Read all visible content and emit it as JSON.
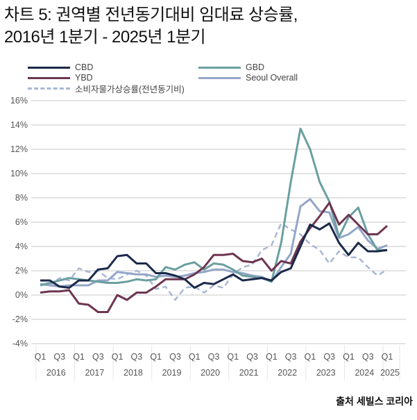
{
  "title": {
    "line1": "차트 5: 권역별 전년동기대비 임대료 상승률,",
    "line2": "2016년 1분기 - 2025년 1분기"
  },
  "source": "출처 세빌스 코리아",
  "chart_data": {
    "type": "line",
    "title": "차트 5: 권역별 전년동기대비 임대료 상승률, 2016년 1분기 - 2025년 1분기",
    "xlabel": "",
    "ylabel": "",
    "ylim": [
      -4,
      16
    ],
    "yticks": [
      "16%",
      "14%",
      "12%",
      "10%",
      "8%",
      "6%",
      "4%",
      "2%",
      "0%",
      "-2%",
      "-4%"
    ],
    "ytick_values": [
      16,
      14,
      12,
      10,
      8,
      6,
      4,
      2,
      0,
      -2,
      -4
    ],
    "grid": true,
    "legend_position": "top",
    "quarter_labels": [
      "Q1",
      "Q3",
      "Q1",
      "Q3",
      "Q1",
      "Q3",
      "Q1",
      "Q3",
      "Q1",
      "Q3",
      "Q1",
      "Q3",
      "Q1",
      "Q3",
      "Q1",
      "Q3",
      "Q1",
      "Q3",
      "Q1"
    ],
    "years": [
      "2016",
      "2017",
      "2018",
      "2019",
      "2020",
      "2021",
      "2022",
      "2023",
      "2024",
      "2025"
    ],
    "x": [
      "2016Q1",
      "2016Q2",
      "2016Q3",
      "2016Q4",
      "2017Q1",
      "2017Q2",
      "2017Q3",
      "2017Q4",
      "2018Q1",
      "2018Q2",
      "2018Q3",
      "2018Q4",
      "2019Q1",
      "2019Q2",
      "2019Q3",
      "2019Q4",
      "2020Q1",
      "2020Q2",
      "2020Q3",
      "2020Q4",
      "2021Q1",
      "2021Q2",
      "2021Q3",
      "2021Q4",
      "2022Q1",
      "2022Q2",
      "2022Q3",
      "2022Q4",
      "2023Q1",
      "2023Q2",
      "2023Q3",
      "2023Q4",
      "2024Q1",
      "2024Q2",
      "2024Q3",
      "2024Q4",
      "2025Q1"
    ],
    "series": [
      {
        "name": "CBD",
        "color": "#1b2a4a",
        "dashed": false,
        "values": [
          1.2,
          1.2,
          0.7,
          0.6,
          1.2,
          1.2,
          2.1,
          2.2,
          3.2,
          3.3,
          2.6,
          2.6,
          1.8,
          1.8,
          1.6,
          1.3,
          0.6,
          1.0,
          0.9,
          1.3,
          1.7,
          1.2,
          1.3,
          1.4,
          1.2,
          1.9,
          2.2,
          4.0,
          5.8,
          5.4,
          5.9,
          4.3,
          3.3,
          4.3,
          3.6,
          3.6,
          3.7
        ]
      },
      {
        "name": "GBD",
        "color": "#6a9fa0",
        "dashed": false,
        "values": [
          0.8,
          1.0,
          1.2,
          1.4,
          1.3,
          1.2,
          1.1,
          1.0,
          1.0,
          1.1,
          1.3,
          1.2,
          1.3,
          2.3,
          2.1,
          2.5,
          2.7,
          2.1,
          2.6,
          2.5,
          2.1,
          1.6,
          1.5,
          1.4,
          1.1,
          4.3,
          9.3,
          13.7,
          12.0,
          9.3,
          7.7,
          4.8,
          6.4,
          7.2,
          5.0,
          3.7,
          3.7
        ]
      },
      {
        "name": "YBD",
        "color": "#6e3550",
        "dashed": false,
        "values": [
          0.2,
          0.3,
          0.3,
          0.4,
          -0.7,
          -0.8,
          -1.4,
          -1.4,
          0.0,
          -0.4,
          0.2,
          0.2,
          0.7,
          1.3,
          1.3,
          1.3,
          1.7,
          2.3,
          3.3,
          3.3,
          3.4,
          2.8,
          2.7,
          3.0,
          2.0,
          2.8,
          2.6,
          4.4,
          5.5,
          6.5,
          7.6,
          5.8,
          6.6,
          5.8,
          5.0,
          5.0,
          5.7
        ]
      },
      {
        "name": "Seoul Overall",
        "color": "#94a6c8",
        "dashed": false,
        "values": [
          0.9,
          0.8,
          0.7,
          0.8,
          0.8,
          0.8,
          1.2,
          1.2,
          1.9,
          1.8,
          1.7,
          1.7,
          1.5,
          1.6,
          1.5,
          1.6,
          1.8,
          1.9,
          2.1,
          2.1,
          1.9,
          1.8,
          1.6,
          1.5,
          1.1,
          2.3,
          3.4,
          7.3,
          7.9,
          6.9,
          6.8,
          4.7,
          5.0,
          5.6,
          4.5,
          3.8,
          4.1
        ]
      },
      {
        "name": "소비자물가상승률(전년동기비)",
        "color": "#a9b7d4",
        "dashed": true,
        "values": [
          0.9,
          0.8,
          1.4,
          1.2,
          2.2,
          1.9,
          2.0,
          1.4,
          1.3,
          1.7,
          2.0,
          1.6,
          0.5,
          0.7,
          -0.4,
          0.6,
          0.7,
          0.2,
          0.8,
          0.6,
          1.7,
          2.3,
          2.5,
          3.7,
          4.1,
          5.9,
          5.4,
          5.0,
          4.2,
          3.7,
          2.6,
          3.6,
          3.1,
          3.1,
          2.3,
          1.6,
          2.1
        ]
      }
    ]
  }
}
